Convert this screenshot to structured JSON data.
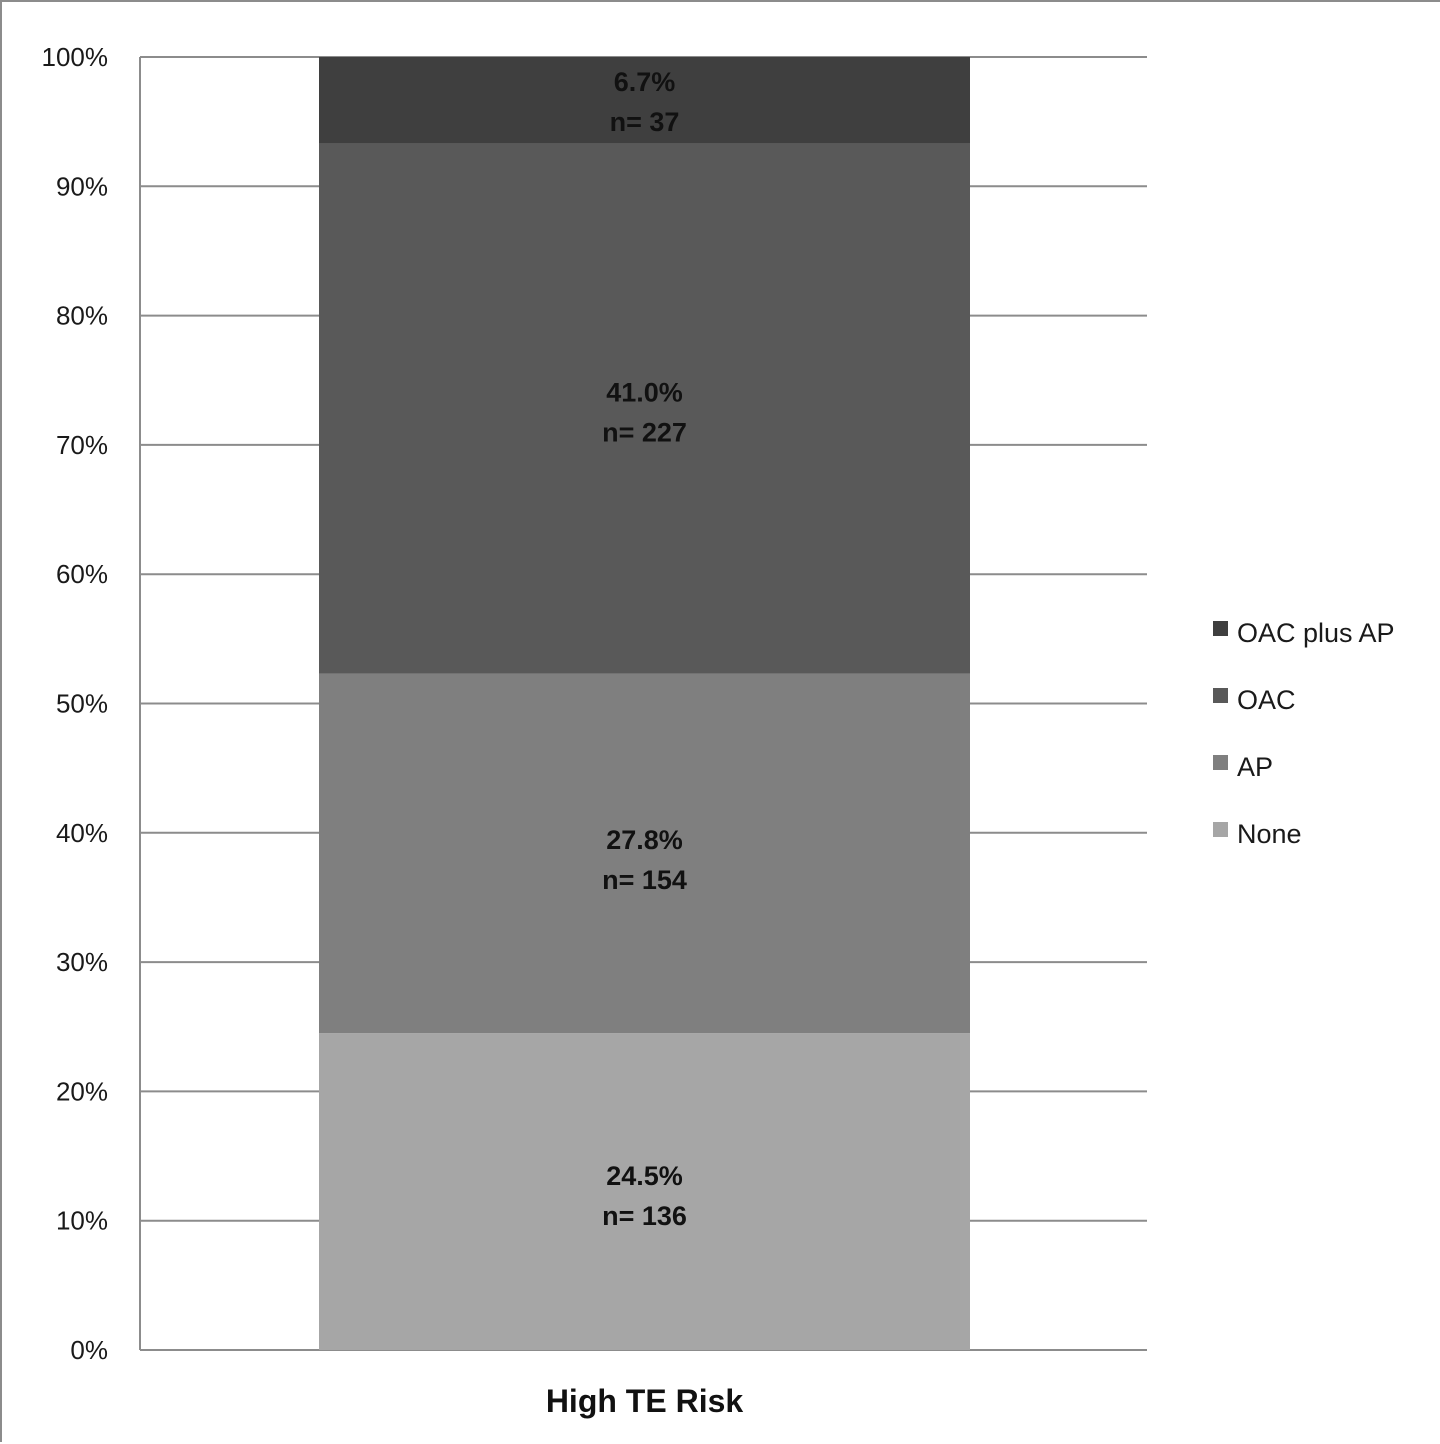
{
  "chart_data": {
    "type": "bar",
    "stacked": true,
    "categories": [
      "High TE Risk"
    ],
    "series": [
      {
        "name": "None",
        "values": [
          24.5
        ],
        "n_label": "n= 136",
        "value_label": "24.5%",
        "color": "#a6a6a6"
      },
      {
        "name": "AP",
        "values": [
          27.8
        ],
        "n_label": "n= 154",
        "value_label": "27.8%",
        "color": "#7f7f7f"
      },
      {
        "name": "OAC",
        "values": [
          41.0
        ],
        "n_label": "n= 227",
        "value_label": "41.0%",
        "color": "#595959"
      },
      {
        "name": "OAC plus AP",
        "values": [
          6.7
        ],
        "n_label": "n= 37",
        "value_label": "6.7%",
        "color": "#3f3f3f"
      }
    ],
    "ylim": [
      0,
      100
    ],
    "yticks": [
      "0%",
      "10%",
      "20%",
      "30%",
      "40%",
      "50%",
      "60%",
      "70%",
      "80%",
      "90%",
      "100%"
    ],
    "title": "",
    "xlabel": "",
    "ylabel": "",
    "grid": true,
    "legend_position": "right",
    "legend_order": [
      "OAC plus AP",
      "OAC",
      "AP",
      "None"
    ]
  }
}
